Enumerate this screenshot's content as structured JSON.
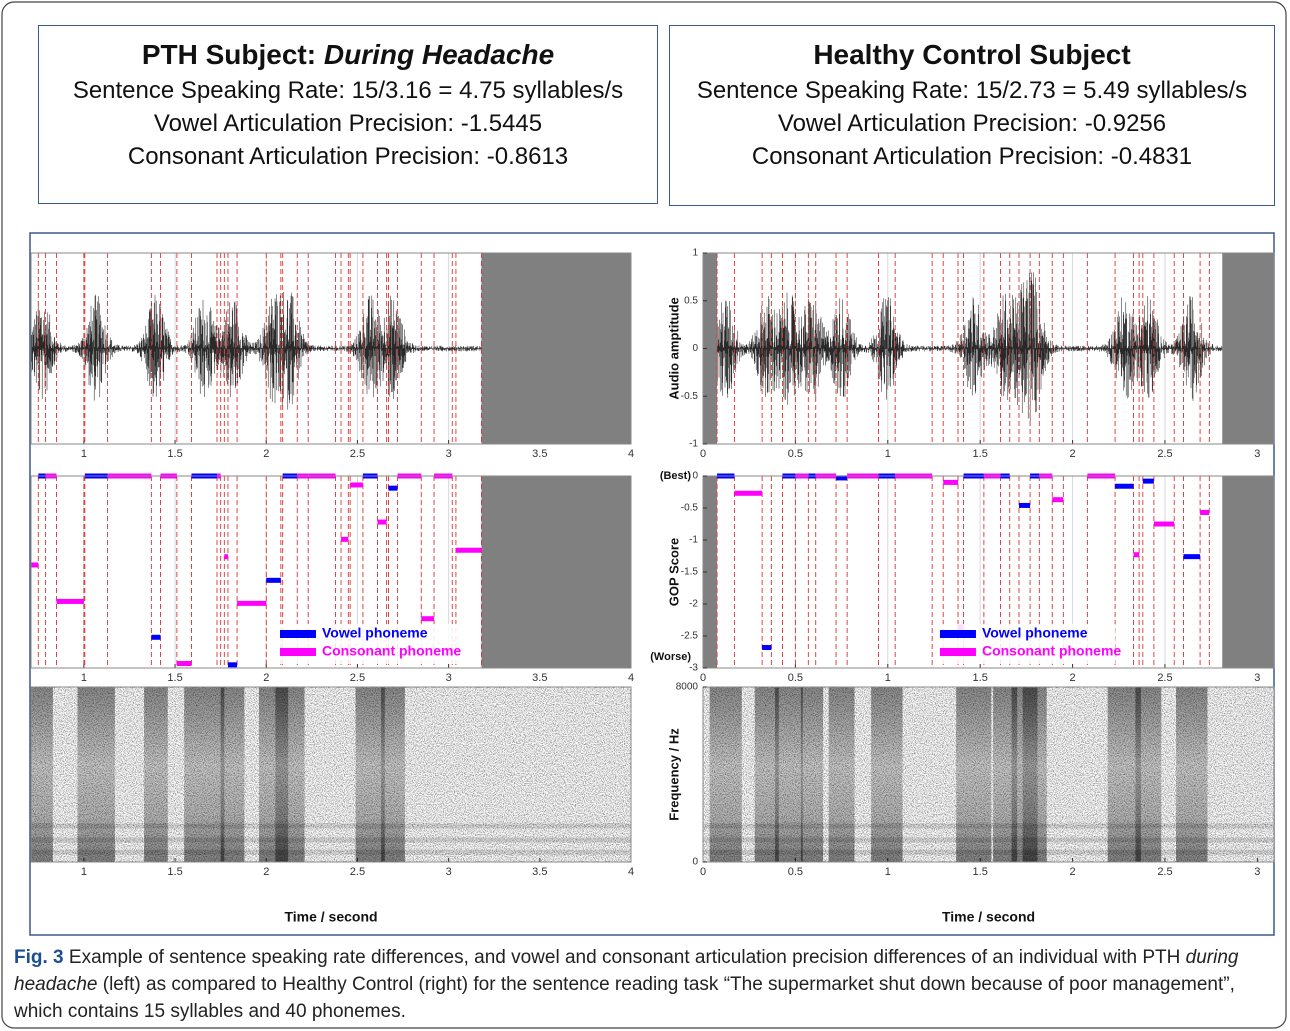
{
  "left_box": {
    "title": "PTH Subject:",
    "title_emphasis": "During Headache",
    "lines": [
      "Sentence Speaking Rate: 15/3.16 = 4.75 syllables/s",
      "Vowel Articulation Precision: -1.5445",
      "Consonant Articulation Precision: -0.8613"
    ]
  },
  "right_box": {
    "title": "Healthy Control Subject",
    "lines": [
      "Sentence Speaking Rate: 15/2.73 = 5.49 syllables/s",
      "Vowel Articulation Precision: -0.9256",
      "Consonant Articulation Precision: -0.4831"
    ]
  },
  "panels": {
    "left": {
      "xlim": [
        0.71,
        4
      ],
      "xticks": [
        1,
        1.5,
        2,
        2.5,
        3,
        3.5,
        4
      ],
      "gop_ylim": [
        -3,
        0
      ],
      "shaded": [
        [
          3.18,
          4
        ]
      ],
      "series": [
        {
          "name": "Vowel phoneme",
          "color": "#0000ff",
          "start": [
            0.75,
            1.005,
            1.37,
            1.59,
            1.79,
            2.0,
            2.09,
            2.53,
            2.67
          ],
          "end": [
            0.79,
            1.13,
            1.42,
            1.73,
            1.84,
            2.08,
            2.17,
            2.61,
            2.72
          ],
          "values": [
            0,
            0,
            -2.52,
            0,
            -2.95,
            -1.63,
            0,
            0,
            -0.19
          ]
        },
        {
          "name": "Consonant phoneme",
          "color": "#ff00ff",
          "start": [
            0.71,
            0.79,
            0.85,
            1.13,
            1.42,
            1.51,
            1.73,
            1.77,
            1.84,
            2.17,
            2.23,
            2.41,
            2.46,
            2.61,
            2.72,
            2.85,
            2.92,
            3.04
          ],
          "end": [
            0.75,
            0.85,
            1.0,
            1.37,
            1.51,
            1.59,
            1.75,
            1.79,
            2.0,
            2.23,
            2.38,
            2.45,
            2.53,
            2.66,
            2.85,
            2.92,
            3.02,
            3.18
          ],
          "values": [
            -1.39,
            0,
            -1.96,
            0,
            0,
            -2.93,
            0,
            -1.26,
            -1.99,
            0,
            0,
            -0.99,
            -0.14,
            -0.72,
            0,
            -2.23,
            0,
            -1.16
          ]
        }
      ],
      "x_label": "Time / second"
    },
    "right": {
      "xlim": [
        0,
        3.09
      ],
      "xticks": [
        0,
        0.5,
        1,
        1.5,
        2,
        2.5,
        3
      ],
      "wave_ylim": [
        -1,
        1
      ],
      "wave_yticks": [
        -1,
        -0.5,
        0,
        0.5,
        1
      ],
      "wave_label": "Audio amptitude",
      "gop_ylim": [
        -3,
        0
      ],
      "gop_yticks": [
        0,
        -0.5,
        -1,
        -1.5,
        -2,
        -2.5,
        -3
      ],
      "gop_label": "GOP Score",
      "gop_best_label": "(Best)",
      "gop_worst_label": "(Worse)",
      "spec_ylim": [
        0,
        8000
      ],
      "spec_yticks": [
        0,
        8000
      ],
      "spec_label": "Frequency / Hz",
      "shaded": [
        [
          0,
          0.076
        ],
        [
          2.81,
          3.09
        ]
      ],
      "series": [
        {
          "name": "Vowel phoneme",
          "color": "#0000ff",
          "start": [
            0.076,
            0.32,
            0.43,
            0.57,
            0.72,
            0.95,
            1.41,
            1.61,
            1.71,
            1.77,
            2.23,
            2.38,
            2.6
          ],
          "end": [
            0.17,
            0.37,
            0.5,
            0.61,
            0.78,
            1.04,
            1.52,
            1.66,
            1.77,
            1.82,
            2.33,
            2.44,
            2.69
          ],
          "values": [
            0,
            -2.68,
            0,
            0,
            -0.03,
            0,
            0,
            0,
            -0.46,
            0,
            -0.16,
            -0.08,
            -1.26
          ]
        },
        {
          "name": "Consonant phoneme",
          "color": "#ff00ff",
          "start": [
            0.17,
            0.5,
            0.61,
            0.78,
            1.04,
            1.3,
            1.38,
            1.52,
            1.82,
            1.89,
            2.08,
            2.33,
            2.44,
            2.69
          ],
          "end": [
            0.32,
            0.57,
            0.72,
            0.95,
            1.24,
            1.38,
            1.41,
            1.61,
            1.89,
            1.95,
            2.23,
            2.36,
            2.55,
            2.74
          ],
          "values": [
            -0.27,
            0,
            0,
            0,
            0,
            -0.1,
            -2.36,
            0,
            0,
            -0.37,
            0,
            -1.23,
            -0.75,
            -0.57
          ]
        }
      ],
      "x_label": "Time / second"
    }
  },
  "caption": {
    "label": "Fig. 3",
    "text_1": "Example of sentence speaking rate differences, and vowel and consonant articulation precision differences of an individual with PTH",
    "emphasis": "during headache",
    "text_2": "(left) as compared to Healthy Control (right) for the sentence reading task “The supermarket shut down because of poor management”, which contains 15 syllables and 40 phonemes."
  }
}
